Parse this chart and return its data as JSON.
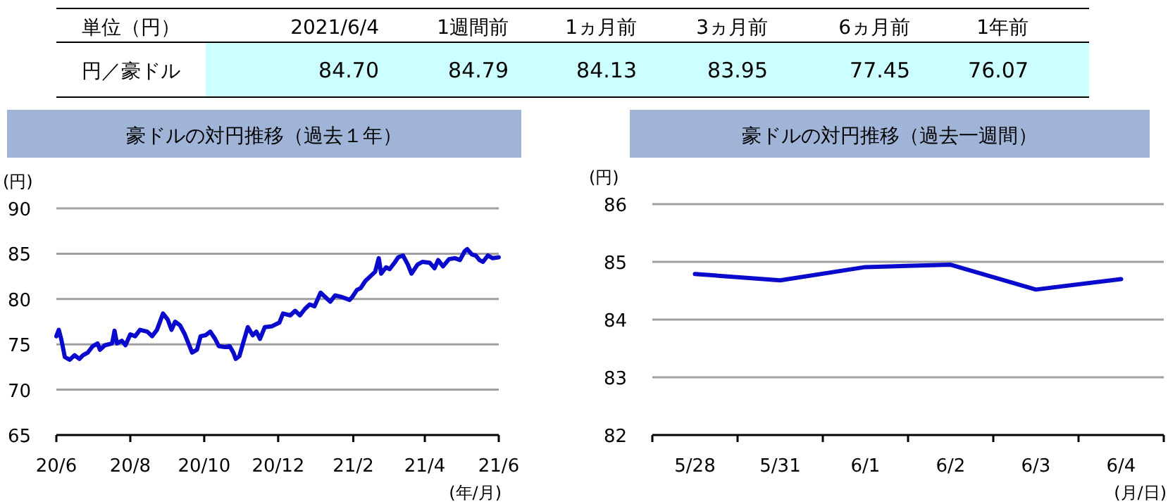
{
  "chart_data": [
    {
      "type": "other",
      "title": "単位（円）",
      "ylabel": "円／豪ドル",
      "categories": [
        "2021/6/4",
        "1週間前",
        "1ヵ月前",
        "3ヵ月前",
        "6ヵ月前",
        "1年前"
      ],
      "values": [
        84.7,
        84.79,
        84.13,
        83.95,
        77.45,
        76.07
      ],
      "value_labels": [
        "84.70",
        "84.79",
        "84.13",
        "83.95",
        "77.45",
        "76.07"
      ]
    },
    {
      "type": "line",
      "title": "豪ドルの対円推移（過去１年）",
      "ylabel": "(円)",
      "xlabel": "(年/月)",
      "color": "#0a0acc",
      "grid": "y",
      "xlim": [
        "2020-06-01",
        "2021-06-01"
      ],
      "xticks": [
        {
          "value": "2020-06-01",
          "label": "20/6"
        },
        {
          "value": "2020-08-01",
          "label": "20/8"
        },
        {
          "value": "2020-10-01",
          "label": "20/10"
        },
        {
          "value": "2020-12-01",
          "label": "20/12"
        },
        {
          "value": "2021-02-01",
          "label": "21/2"
        },
        {
          "value": "2021-04-01",
          "label": "21/4"
        },
        {
          "value": "2021-06-01",
          "label": "21/6"
        }
      ],
      "ylim": [
        65,
        90
      ],
      "yticks": [
        65,
        70,
        75,
        80,
        85,
        90
      ],
      "x": [
        "2020-06-01",
        "2020-06-03",
        "2020-06-05",
        "2020-06-08",
        "2020-06-12",
        "2020-06-16",
        "2020-06-20",
        "2020-06-23",
        "2020-06-27",
        "2020-07-01",
        "2020-07-05",
        "2020-07-07",
        "2020-07-11",
        "2020-07-17",
        "2020-07-19",
        "2020-07-21",
        "2020-07-25",
        "2020-07-28",
        "2020-08-01",
        "2020-08-05",
        "2020-08-09",
        "2020-08-15",
        "2020-08-19",
        "2020-08-23",
        "2020-08-28",
        "2020-09-01",
        "2020-09-04",
        "2020-09-07",
        "2020-09-11",
        "2020-09-15",
        "2020-09-21",
        "2020-09-25",
        "2020-09-28",
        "2020-10-02",
        "2020-10-06",
        "2020-10-10",
        "2020-10-13",
        "2020-10-18",
        "2020-10-22",
        "2020-10-25",
        "2020-10-27",
        "2020-10-30",
        "2020-11-02",
        "2020-11-06",
        "2020-11-10",
        "2020-11-13",
        "2020-11-16",
        "2020-11-20",
        "2020-11-26",
        "2020-12-02",
        "2020-12-05",
        "2020-12-11",
        "2020-12-15",
        "2020-12-19",
        "2020-12-23",
        "2020-12-27",
        "2020-12-31",
        "2021-01-05",
        "2021-01-09",
        "2021-01-13",
        "2021-01-17",
        "2021-01-23",
        "2021-01-29",
        "2021-01-31",
        "2021-02-04",
        "2021-02-07",
        "2021-02-11",
        "2021-02-15",
        "2021-02-19",
        "2021-02-22",
        "2021-02-24",
        "2021-02-28",
        "2021-03-03",
        "2021-03-07",
        "2021-03-10",
        "2021-03-14",
        "2021-03-18",
        "2021-03-21",
        "2021-03-26",
        "2021-03-30",
        "2021-04-05",
        "2021-04-09",
        "2021-04-12",
        "2021-04-16",
        "2021-04-21",
        "2021-04-26",
        "2021-04-30",
        "2021-05-04",
        "2021-05-06",
        "2021-05-10",
        "2021-05-13",
        "2021-05-16",
        "2021-05-19",
        "2021-05-23",
        "2021-05-27",
        "2021-06-01"
      ],
      "values": [
        75.9,
        76.6,
        75.6,
        73.6,
        73.3,
        73.8,
        73.4,
        73.8,
        74.1,
        74.8,
        75.1,
        74.4,
        74.9,
        75.1,
        76.5,
        75.1,
        75.4,
        74.9,
        76.1,
        75.9,
        76.6,
        76.4,
        75.9,
        76.6,
        78.4,
        77.7,
        76.6,
        77.5,
        77.1,
        76.1,
        74.1,
        74.4,
        75.9,
        76.0,
        76.4,
        75.6,
        74.8,
        74.7,
        74.8,
        74.1,
        73.4,
        73.7,
        75.1,
        76.9,
        76.0,
        76.4,
        75.6,
        76.9,
        77.0,
        77.4,
        78.4,
        78.2,
        78.7,
        78.2,
        78.9,
        79.4,
        79.2,
        80.7,
        80.2,
        79.7,
        80.4,
        80.2,
        79.9,
        80.2,
        81.0,
        81.2,
        82.0,
        82.5,
        83.0,
        84.5,
        82.8,
        83.5,
        83.3,
        84.0,
        84.6,
        84.8,
        83.8,
        82.8,
        83.8,
        84.1,
        84.0,
        83.4,
        84.3,
        83.6,
        84.4,
        84.5,
        84.3,
        85.3,
        85.5,
        84.9,
        84.8,
        84.3,
        84.1,
        84.8,
        84.5,
        84.6
      ]
    },
    {
      "type": "line",
      "title": "豪ドルの対円推移（過去一週間）",
      "ylabel": "(円)",
      "xlabel": "(月/日)",
      "color": "#0a0acc",
      "grid": "y",
      "categories": [
        "5/28",
        "5/31",
        "6/1",
        "6/2",
        "6/3",
        "6/4"
      ],
      "ylim": [
        82,
        86
      ],
      "yticks": [
        82,
        83,
        84,
        85,
        86
      ],
      "values": [
        84.79,
        84.68,
        84.91,
        84.95,
        84.52,
        84.7
      ]
    }
  ]
}
